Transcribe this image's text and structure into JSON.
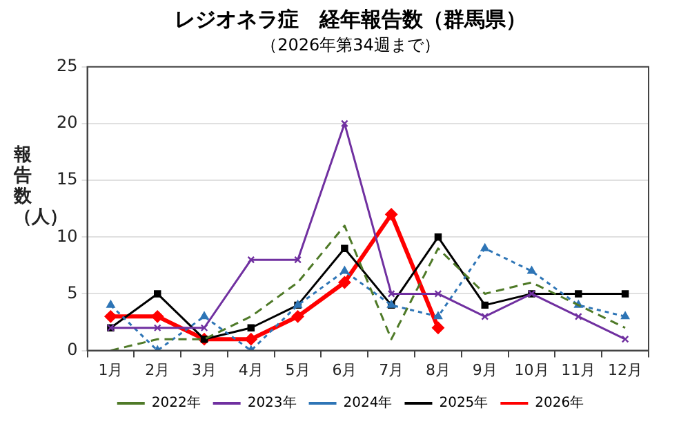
{
  "chart_data": {
    "type": "line",
    "title": "レジオネラ症　経年報告数（群馬県）",
    "subtitle": "（2026年第34週まで）",
    "ylabel": "報告数（人）",
    "categories": [
      "1月",
      "2月",
      "3月",
      "4月",
      "5月",
      "6月",
      "7月",
      "8月",
      "9月",
      "10月",
      "11月",
      "12月"
    ],
    "ylim": [
      0,
      25
    ],
    "yticks": [
      0,
      5,
      10,
      15,
      20,
      25
    ],
    "grid": "y",
    "legend": "bottom",
    "series": [
      {
        "name": "2022年",
        "color": "#4f7a28",
        "line_style": "dashed",
        "marker": "none",
        "values": [
          0,
          1,
          1,
          3,
          6,
          11,
          1,
          9,
          5,
          6,
          4,
          2
        ]
      },
      {
        "name": "2023年",
        "color": "#7030a0",
        "line_style": "solid",
        "marker": "cross",
        "values": [
          2,
          2,
          2,
          8,
          8,
          20,
          5,
          5,
          3,
          5,
          3,
          1
        ]
      },
      {
        "name": "2024年",
        "color": "#2e75b6",
        "line_style": "dotted",
        "marker": "triangle",
        "values": [
          4,
          0,
          3,
          0,
          4,
          7,
          4,
          3,
          9,
          7,
          4,
          3
        ]
      },
      {
        "name": "2025年",
        "color": "#000000",
        "line_style": "solid",
        "marker": "square",
        "values": [
          2,
          5,
          1,
          2,
          4,
          9,
          4,
          10,
          4,
          5,
          5,
          5
        ]
      },
      {
        "name": "2026年",
        "color": "#ff0000",
        "line_style": "solid",
        "marker": "diamond",
        "values": [
          3,
          3,
          1,
          1,
          3,
          6,
          12,
          2,
          null,
          null,
          null,
          null
        ]
      }
    ]
  }
}
